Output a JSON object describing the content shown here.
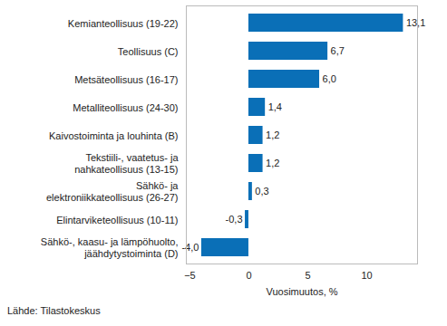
{
  "chart_data": {
    "type": "bar",
    "orientation": "horizontal",
    "categories": [
      "Kemianteollisuus (19-22)",
      "Teollisuus (C)",
      "Metsäteollisuus (16-17)",
      "Metalliteollisuus (24-30)",
      "Kaivostoiminta ja louhinta (B)",
      "Tekstiili-, vaatetus- ja\nnahkateollisuus (13-15)",
      "Sähkö- ja\nelektroniikkateollisuus (26-27)",
      "Elintarviketeollisuus (10-11)",
      "Sähkö-, kaasu- ja lämpöhuolto,\njäähdytystoiminta (D)"
    ],
    "values": [
      13.1,
      6.7,
      6.0,
      1.4,
      1.2,
      1.2,
      0.3,
      -0.3,
      -4.0
    ],
    "value_labels": [
      "13,1",
      "6,7",
      "6,0",
      "1,4",
      "1,2",
      "1,2",
      "0,3",
      "-0,3",
      "-4,0"
    ],
    "data_labels": true,
    "color": "#0a6fb7",
    "xlabel": "Vuosimuutos, %",
    "xlim": [
      -5.3,
      14.3
    ],
    "xticks": [
      -5,
      0,
      5,
      10
    ],
    "grid": false,
    "caption": "Lähde: Tilastokeskus"
  }
}
